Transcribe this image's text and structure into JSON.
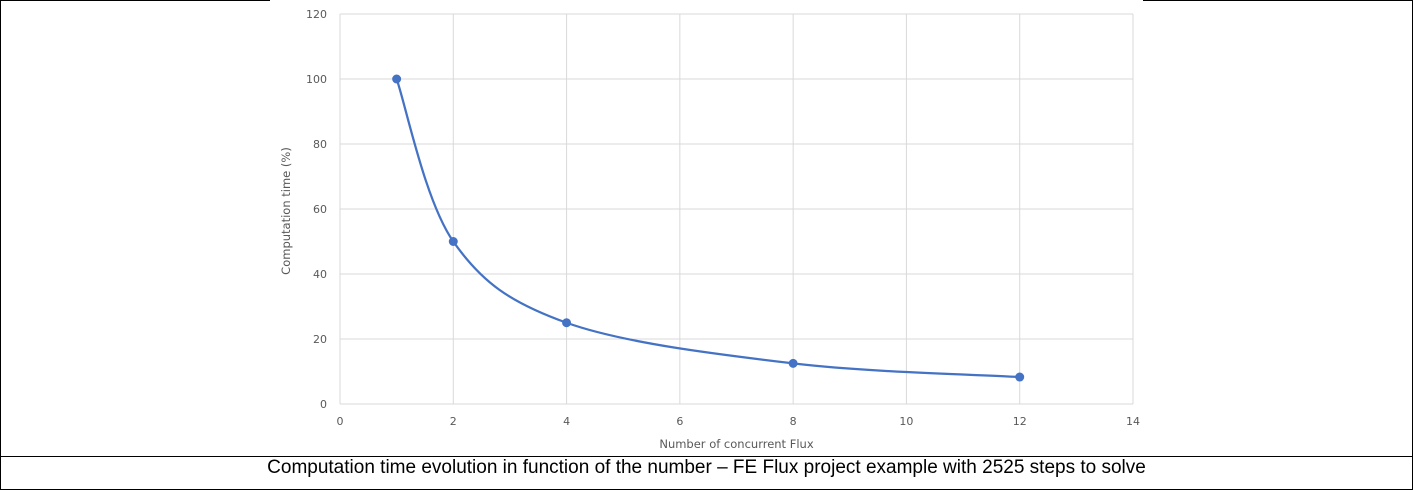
{
  "caption": "Computation time evolution in function of the number – FE Flux project example with 2525 steps to solve",
  "chart_data": {
    "type": "scatter",
    "style": "smooth-line-with-markers",
    "title": "",
    "xlabel": "Number of concurrent Flux",
    "ylabel": "Computation time (%)",
    "xlim": [
      0,
      14
    ],
    "ylim": [
      0,
      120
    ],
    "x_ticks": [
      "0",
      "2",
      "4",
      "6",
      "8",
      "10",
      "12",
      "14"
    ],
    "y_ticks": [
      "0",
      "20",
      "40",
      "60",
      "80",
      "100",
      "120"
    ],
    "grid": true,
    "legend": "none",
    "series": [
      {
        "x": [
          1,
          2,
          4,
          8,
          12
        ],
        "y": [
          100,
          50,
          25,
          12.5,
          8.3
        ],
        "color": "#4472c4"
      }
    ]
  }
}
